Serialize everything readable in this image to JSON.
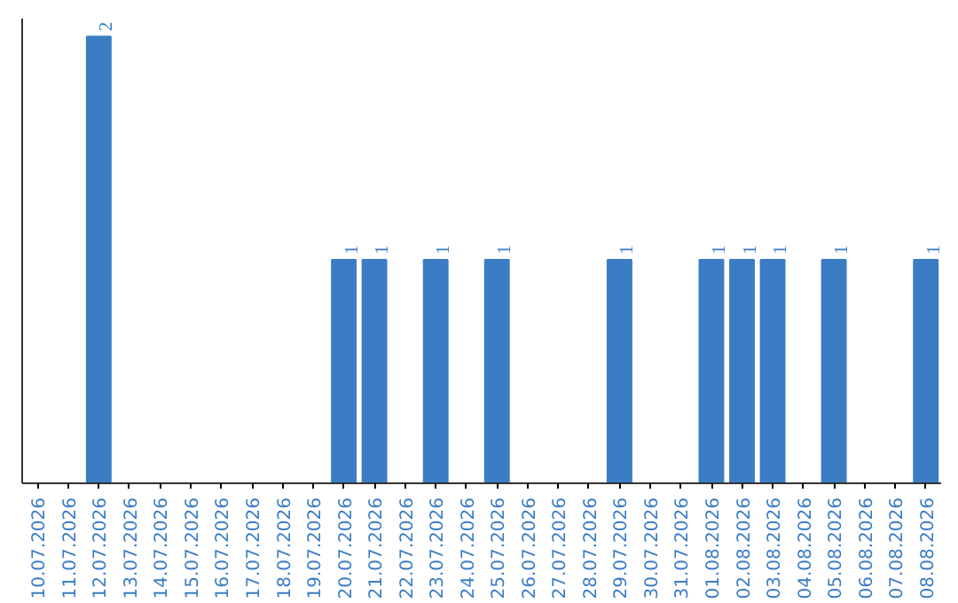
{
  "chart_data": {
    "type": "bar",
    "categories": [
      "10.07.2026",
      "11.07.2026",
      "12.07.2026",
      "13.07.2026",
      "14.07.2026",
      "15.07.2026",
      "16.07.2026",
      "17.07.2026",
      "18.07.2026",
      "19.07.2026",
      "20.07.2026",
      "21.07.2026",
      "22.07.2026",
      "23.07.2026",
      "24.07.2026",
      "25.07.2026",
      "26.07.2026",
      "27.07.2026",
      "28.07.2026",
      "29.07.2026",
      "30.07.2026",
      "31.07.2026",
      "01.08.2026",
      "02.08.2026",
      "03.08.2026",
      "04.08.2026",
      "05.08.2026",
      "06.08.2026",
      "07.08.2026",
      "08.08.2026"
    ],
    "values": [
      0,
      0,
      2,
      0,
      0,
      0,
      0,
      0,
      0,
      0,
      1,
      1,
      0,
      1,
      0,
      1,
      0,
      0,
      0,
      1,
      0,
      0,
      1,
      1,
      1,
      0,
      1,
      0,
      0,
      1
    ],
    "value_labels": [
      null,
      null,
      "2",
      null,
      null,
      null,
      null,
      null,
      null,
      null,
      "1",
      "1",
      null,
      "1",
      null,
      "1",
      null,
      null,
      null,
      "1",
      null,
      null,
      "1",
      "1",
      "1",
      null,
      "1",
      null,
      null,
      "1"
    ],
    "color": "#3b7dc4",
    "ylim": [
      0,
      2.08
    ],
    "tick_labels": "x",
    "grid": false
  }
}
